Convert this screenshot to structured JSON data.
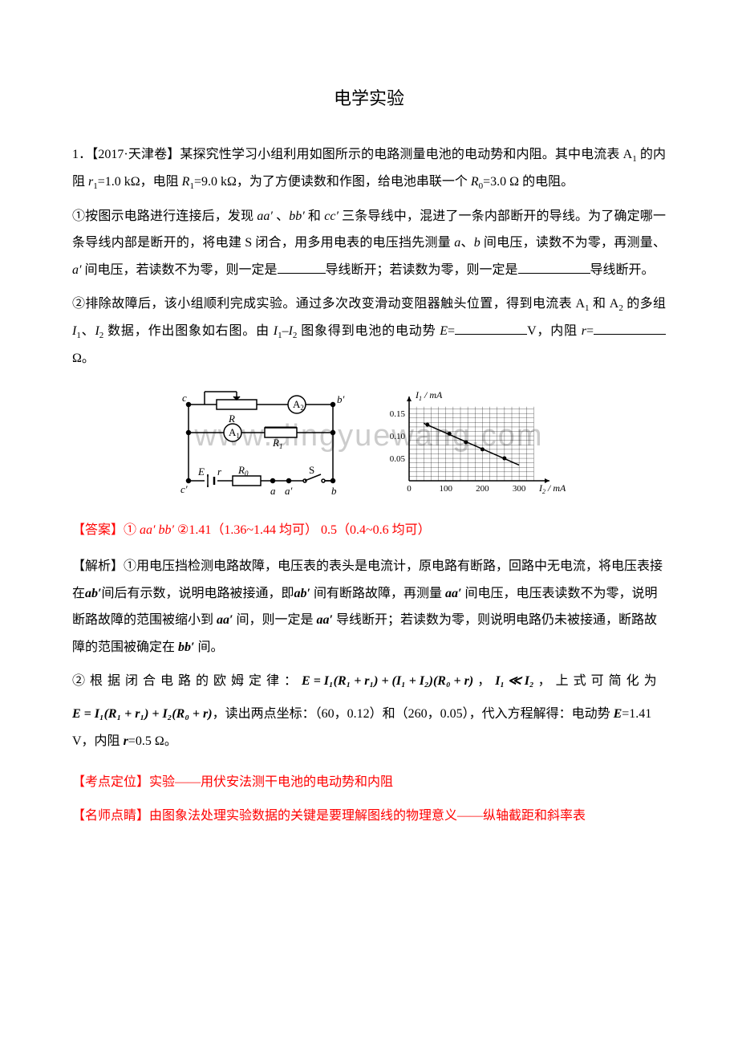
{
  "title": "电学实验",
  "q1": {
    "intro": "1．【2017·天津卷】某探究性学习小组利用如图所示的电路测量电池的电动势和内阻。其中电流表 A",
    "intro2": " 的内阻 ",
    "intro3": "=1.0 kΩ，电阻 ",
    "intro4": "=9.0 kΩ，为了方便读数和作图，给电池串联一个",
    "intro5": "=3.0 Ω 的电阻。",
    "part1a": "①按图示电路进行连接后，发现 ",
    "part1b": " 、",
    "part1c": " 和 ",
    "part1d": " 三条导线中，混进了一条内部断开的导线。为了确定哪一条导线内部是断开的，将电建 S 闭合，用多用电表的电压挡先测量 ",
    "part1e": "、",
    "part1f": " 间电压，读数不为零，再测量、",
    "part1g": " 间电压，若读数不为零，则一定是",
    "part1h": "导线断开；若读数为零，则一定是",
    "part1i": "导线断开。",
    "part2a": "②排除故障后，该小组顺利完成实验。通过多次改变滑动变阻器触头位置，得到电流表 A",
    "part2b": "和 A",
    "part2c": " 的多组 ",
    "part2d": "、",
    "part2e": " 数据，作出图象如右图。由 ",
    "part2f": "–",
    "part2g": " 图象得到电池的电动势 ",
    "part2h": "=",
    "part2i": "V，内阻 ",
    "part2j": "=",
    "part2k": "Ω。"
  },
  "labels": {
    "aa": "aa′",
    "bb": "bb′",
    "cc": "cc′",
    "a": "a",
    "b": "b",
    "aprime": "a′",
    "r1": "r",
    "R1": "R",
    "R0": "R",
    "I1": "I",
    "I2": "I",
    "E": "E",
    "r": "r"
  },
  "subs": {
    "one": "1",
    "two": "2",
    "zero": "0"
  },
  "answer": {
    "prefix": "【答案】① ",
    "a1": "aa′",
    "sep1": "    ",
    "a2": "bb′",
    "sep2": "    ②",
    "a3": "1.41（1.36~1.44 均可）    0.5（0.4~0.6 均可）"
  },
  "explain": {
    "p1a": "【解析】①用电压挡检测电路故障，电压表的表头是电流计，原电路有断路，回路中无电流，将电压表接在",
    "p1b": "间后有示数，说明电路被接通，即",
    "p1c": " 间有断路故障，再测量 ",
    "p1d": " 间电压，电压表读数不为零，说明断路故障的范围被缩小到 ",
    "p1e": " 间，则一定是 ",
    "p1f": " 导线断开；若读数为零，则说明电路仍未被接通，断路故障的范围被确定在 ",
    "p1g": " 间。",
    "p2a": "② 根 据 闭 合 电 路 的 欧 姆 定 律 ：",
    "formula1": "E = I₁(R₁ + r₁) + (I₁ + I₂)(R₀ + r)",
    "p2b": " ， ",
    "p2c": "I₁ ≪ I₂",
    "p2d": " ， 上 式 可 简 化 为",
    "formula2": "E = I₁(R₁ + r₁) + I₂(R₀ + r)",
    "p2e": "，读出两点坐标：（60，0.12）和（260，0.05），代入方程解得：电动势 ",
    "p2f": "=1.41 V，内阻 ",
    "p2g": "=0.5 Ω。",
    "eb": "E",
    "rb": "r"
  },
  "positioning": "【考点定位】实验——用伏安法测干电池的电动势和内阻",
  "tip": "【名师点睛】由图象法处理实验数据的关键是要理解图线的物理意义——纵轴截距和斜率表",
  "circuit": {
    "labels": {
      "c": "c",
      "bprime": "b′",
      "R": "R",
      "A1": "A₁",
      "A2": "A₂",
      "R1": "R₁",
      "E": "E",
      "r": "r",
      "R0": "R₀",
      "S": "S",
      "cprime": "c′",
      "a": "a",
      "aprime": "a′",
      "b": "b"
    },
    "colors": {
      "line": "#000000",
      "bg": "#ffffff"
    }
  },
  "graph": {
    "xlabel": "I₂ / mA",
    "ylabel": "I₁ / mA",
    "xticks": [
      0,
      100,
      200,
      300
    ],
    "yticks": [
      0.05,
      0.1,
      0.15
    ],
    "xlim": [
      0,
      350
    ],
    "ylim": [
      0,
      0.17
    ],
    "line_points": [
      [
        40,
        0.128
      ],
      [
        300,
        0.035
      ]
    ],
    "data_points": [
      [
        50,
        0.125
      ],
      [
        110,
        0.105
      ],
      [
        155,
        0.086
      ],
      [
        200,
        0.07
      ],
      [
        260,
        0.05
      ]
    ],
    "grid_color": "#000000",
    "line_color": "#000000",
    "bg_color": "#ffffff"
  },
  "watermark": "www.dingyuewang.com"
}
